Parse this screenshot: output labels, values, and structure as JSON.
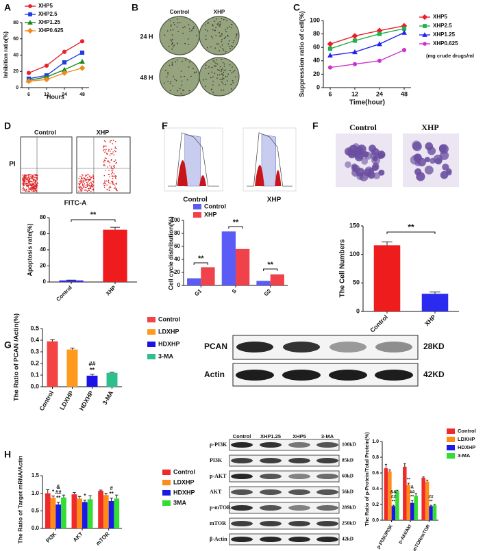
{
  "panels": [
    "A",
    "B",
    "C",
    "D",
    "E",
    "F",
    "G",
    "H"
  ],
  "images": {
    "B": {
      "columns": [
        "Control",
        "XHP"
      ],
      "rows": [
        "24 H",
        "48 H"
      ]
    },
    "D": {
      "columns": [
        "Control",
        "XHP"
      ],
      "y_label": "PI",
      "x_label": "FITC-A"
    },
    "E": {
      "columns": [
        "Control",
        "XHP"
      ]
    },
    "F": {
      "columns": [
        "Control",
        "XHP"
      ]
    },
    "G_blot": {
      "rows": [
        {
          "label": "PCAN",
          "size": "28KD"
        },
        {
          "label": "Actin",
          "size": "42KD"
        }
      ]
    },
    "H_blot": {
      "columns": [
        "Control",
        "XHP1.25",
        "XHP5",
        "3-MA"
      ],
      "rows": [
        {
          "label": "p-PI3K",
          "size": "100kD"
        },
        {
          "label": "PI3K",
          "size": "85kD"
        },
        {
          "label": "p-AKT",
          "size": "60kD"
        },
        {
          "label": "AKT",
          "size": "56kD"
        },
        {
          "label": "p-mTOR",
          "size": "289kD"
        },
        {
          "label": "mTOR",
          "size": "250kD"
        },
        {
          "label": "β-Actin",
          "size": "42kD"
        }
      ]
    }
  },
  "chart_data": [
    {
      "type": "line",
      "ylabel": "Inhibition ratio(%)",
      "xlabel": "Hours",
      "categories": [
        "6",
        "12",
        "24",
        "48"
      ],
      "ylim": [
        0,
        80
      ],
      "yticks": [
        0,
        20,
        40,
        60,
        80
      ],
      "legend": "upper left",
      "series": [
        {
          "name": "XHP5",
          "color": "#e8232b",
          "marker": "circle",
          "values": [
            18,
            27,
            44,
            57
          ]
        },
        {
          "name": "XHP2.5",
          "color": "#1f3ee0",
          "marker": "square",
          "values": [
            11,
            15,
            31,
            43
          ]
        },
        {
          "name": "XHP1.25",
          "color": "#1a8a1a",
          "marker": "triangle",
          "values": [
            9,
            13,
            22,
            32
          ]
        },
        {
          "name": "XHP0.625",
          "color": "#f08a1c",
          "marker": "diamond",
          "values": [
            8,
            10,
            18,
            24
          ]
        }
      ]
    },
    {
      "type": "line",
      "ylabel": "Suppression ratio of cell(%)",
      "xlabel": "Time(hour)",
      "categories": [
        "6",
        "12",
        "24",
        "48"
      ],
      "ylim": [
        0,
        100
      ],
      "yticks": [
        0,
        20,
        40,
        60,
        80,
        100
      ],
      "legend": "right",
      "annotations": [
        "(mg crude drugs/ml"
      ],
      "series": [
        {
          "name": "XHP5",
          "color": "#ee1c25",
          "marker": "diamond",
          "values": [
            65,
            77,
            85,
            92
          ]
        },
        {
          "name": "XHP2.5",
          "color": "#22b14c",
          "marker": "square",
          "values": [
            58,
            70,
            80,
            88
          ]
        },
        {
          "name": "XHP1.25",
          "color": "#2222ee",
          "marker": "triangle",
          "values": [
            48,
            53,
            65,
            82
          ]
        },
        {
          "name": "XHP0.625",
          "color": "#cc33cc",
          "marker": "circle",
          "values": [
            30,
            35,
            40,
            56
          ]
        }
      ]
    },
    {
      "type": "bar",
      "ylabel": "Apoptosis rate(%)",
      "categories": [
        "Control",
        "XHP"
      ],
      "values": [
        2,
        65
      ],
      "errors": [
        0.3,
        3
      ],
      "colors": [
        "#2f2fe8",
        "#ee1c1c"
      ],
      "ylim": [
        0,
        80
      ],
      "yticks": [
        0,
        20,
        40,
        60,
        80
      ],
      "annotations": [
        "**"
      ]
    },
    {
      "type": "bar",
      "ylabel": "Cell cycle distribution(%)",
      "categories": [
        "G1",
        "S",
        "G2"
      ],
      "legend": "upper center",
      "ylim": [
        0,
        100
      ],
      "yticks": [
        0,
        20,
        40,
        60,
        80,
        100
      ],
      "annotations": [
        "**",
        "**",
        "**"
      ],
      "series": [
        {
          "name": "Control",
          "color": "#5b5bf5",
          "values": [
            11,
            83,
            7
          ]
        },
        {
          "name": "XHP",
          "color": "#f0424a",
          "values": [
            28,
            56,
            17
          ]
        }
      ]
    },
    {
      "type": "bar",
      "ylabel": "The Cell Numbers",
      "categories": [
        "Control",
        "XHP"
      ],
      "values": [
        116,
        31
      ],
      "errors": [
        6,
        3
      ],
      "colors": [
        "#ee1c1c",
        "#2b2bf0"
      ],
      "ylim": [
        0,
        150
      ],
      "yticks": [
        0,
        50,
        100,
        150
      ],
      "annotations": [
        "**"
      ]
    },
    {
      "type": "bar",
      "ylabel": "The Ratio of PCAN /Actin(%)",
      "categories": [
        "Control",
        "LDXHP",
        "HDXHP",
        "3-MA"
      ],
      "values": [
        0.39,
        0.32,
        0.095,
        0.12
      ],
      "errors": [
        0.015,
        0.012,
        0.012,
        0.005
      ],
      "colors": [
        "#f44343",
        "#ff9a1f",
        "#1a12e6",
        "#2ebf8c"
      ],
      "legend": "right",
      "ylim": [
        0,
        0.5
      ],
      "yticks": [
        {
          "value": 0,
          "label": "0.0"
        },
        0.1,
        0.2,
        0.3,
        0.4,
        0.5
      ],
      "annotations": [
        "##",
        "**"
      ]
    },
    {
      "type": "bar",
      "ylabel": "The Ratio of Target mRNA/Actin",
      "categories": [
        "PI3K",
        "AKT",
        "mTOR"
      ],
      "legend": "right",
      "ylim": [
        0,
        1.5
      ],
      "yticks": [
        {
          "value": 0,
          "label": "0.0"
        },
        0.5,
        {
          "value": 1,
          "label": "1.0"
        },
        1.5
      ],
      "annotations": [
        "*",
        "&",
        "##",
        "**",
        "*",
        "#",
        "**"
      ],
      "series": [
        {
          "name": "Control",
          "color": "#ee2a2a",
          "values": [
            1.0,
            0.97,
            1.07
          ],
          "errors": [
            0.1,
            0.05,
            0.02
          ]
        },
        {
          "name": "LDXHP",
          "color": "#ff8c1a",
          "values": [
            0.87,
            0.85,
            0.95
          ],
          "errors": [
            0.05,
            0.06,
            0.05
          ]
        },
        {
          "name": "HDXHP",
          "color": "#1a1ae6",
          "values": [
            0.68,
            0.75,
            0.78
          ],
          "errors": [
            0.06,
            0.05,
            0.08
          ]
        },
        {
          "name": "3MA",
          "color": "#33dd33",
          "values": [
            0.88,
            0.83,
            0.85
          ],
          "errors": [
            0.07,
            0.1,
            0.1
          ]
        }
      ]
    },
    {
      "type": "bar",
      "ylabel": "The Ratio of p-Protein/Total Protein(%)",
      "categories": [
        "p-PI3K/PI3K",
        "p-Akt/Akt",
        "p-mTOR/mTOR"
      ],
      "legend": "right",
      "ylim": [
        0,
        1
      ],
      "yticks": [
        {
          "value": 0,
          "label": "0.0"
        },
        0.2,
        0.4,
        0.6,
        0.8,
        {
          "value": 1,
          "label": "1.0"
        }
      ],
      "annotations": [
        "&&",
        "##",
        "**",
        "**",
        "&",
        "##",
        "**",
        "##",
        "**"
      ],
      "series": [
        {
          "name": "Control",
          "color": "#ee2a2a",
          "values": [
            0.66,
            0.68,
            0.54
          ],
          "errors": [
            0.05,
            0.04,
            0.01
          ]
        },
        {
          "name": "LDXHP",
          "color": "#ff8c1a",
          "values": [
            0.62,
            0.45,
            0.49
          ],
          "errors": [
            0.02,
            0.02,
            0.02
          ]
        },
        {
          "name": "HDXHP",
          "color": "#1a1ae6",
          "values": [
            0.18,
            0.22,
            0.18
          ],
          "errors": [
            0.01,
            0.03,
            0.01
          ]
        },
        {
          "name": "3-MA",
          "color": "#33dd33",
          "values": [
            0.37,
            0.31,
            0.19
          ],
          "errors": [
            0.01,
            0.03,
            0.01
          ]
        }
      ]
    }
  ]
}
